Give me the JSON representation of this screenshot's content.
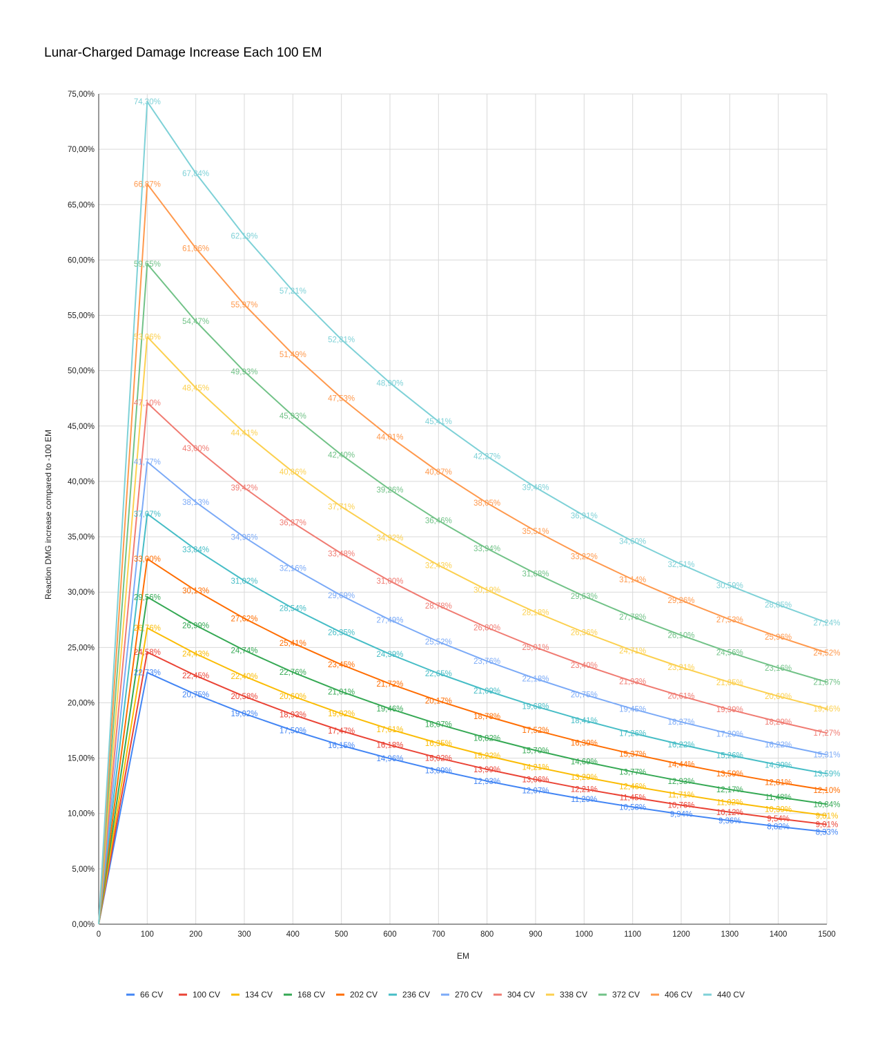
{
  "chart_data": {
    "type": "line",
    "title": "Lunar-Charged Damage Increase Each 100 EM",
    "xlabel": "EM",
    "ylabel": "Reaction DMG increase compared to -100 EM",
    "x": [
      0,
      100,
      200,
      300,
      400,
      500,
      600,
      700,
      800,
      900,
      1000,
      1100,
      1200,
      1300,
      1400,
      1500
    ],
    "xticks": [
      "0",
      "100",
      "200",
      "300",
      "400",
      "500",
      "600",
      "700",
      "800",
      "900",
      "1000",
      "1100",
      "1200",
      "1300",
      "1400",
      "1500"
    ],
    "xlim": [
      0,
      1500
    ],
    "ylim": [
      0,
      75
    ],
    "yticks": [
      "0,00%",
      "5,00%",
      "10,00%",
      "15,00%",
      "20,00%",
      "25,00%",
      "30,00%",
      "35,00%",
      "40,00%",
      "45,00%",
      "50,00%",
      "55,00%",
      "60,00%",
      "65,00%",
      "70,00%",
      "75,00%"
    ],
    "grid": true,
    "legend_position": "bottom",
    "series": [
      {
        "name": "66 CV",
        "color": "#4285f4",
        "values": [
          0,
          22.73,
          20.75,
          19.02,
          17.5,
          16.15,
          14.96,
          13.89,
          12.93,
          12.07,
          11.29,
          10.58,
          9.94,
          9.36,
          8.82,
          8.33
        ],
        "labels": [
          "",
          "22,73%",
          "20,75%",
          "19,02%",
          "17,50%",
          "16,15%",
          "14,96%",
          "13,89%",
          "12,93%",
          "12,07%",
          "11,29%",
          "10,58%",
          "9,94%",
          "9,36%",
          "8,82%",
          "8,33%"
        ]
      },
      {
        "name": "100 CV",
        "color": "#ea4335",
        "values": [
          0,
          24.58,
          22.45,
          20.58,
          18.93,
          17.47,
          16.18,
          15.02,
          13.99,
          13.06,
          12.21,
          11.45,
          10.76,
          10.12,
          9.54,
          9.01
        ],
        "labels": [
          "",
          "24,58%",
          "22,45%",
          "20,58%",
          "18,93%",
          "17,47%",
          "16,18%",
          "15,02%",
          "13,99%",
          "13,06%",
          "12,21%",
          "11,45%",
          "10,76%",
          "10,12%",
          "9,54%",
          "9,01%"
        ]
      },
      {
        "name": "134 CV",
        "color": "#fbbc04",
        "values": [
          0,
          26.76,
          24.43,
          22.4,
          20.6,
          19.02,
          17.61,
          16.35,
          15.22,
          14.21,
          13.29,
          12.46,
          11.71,
          11.02,
          10.39,
          9.81
        ],
        "labels": [
          "",
          "26,76%",
          "24,43%",
          "22,40%",
          "20,60%",
          "19,02%",
          "17,61%",
          "16,35%",
          "15,22%",
          "14,21%",
          "13,29%",
          "12,46%",
          "11,71%",
          "11,02%",
          "10,39%",
          "9,81%"
        ]
      },
      {
        "name": "168 CV",
        "color": "#34a853",
        "values": [
          0,
          29.56,
          26.99,
          24.74,
          22.76,
          21.01,
          19.46,
          18.07,
          16.82,
          15.7,
          14.69,
          13.77,
          12.93,
          12.17,
          11.48,
          10.84
        ],
        "labels": [
          "",
          "29,56%",
          "26,99%",
          "24,74%",
          "22,76%",
          "21,01%",
          "19,46%",
          "18,07%",
          "16,82%",
          "15,70%",
          "14,69%",
          "13,77%",
          "12,93%",
          "12,17%",
          "11,48%",
          "10,84%"
        ]
      },
      {
        "name": "202 CV",
        "color": "#ff6d01",
        "values": [
          0,
          33.0,
          30.13,
          27.62,
          25.41,
          23.45,
          21.72,
          20.17,
          18.78,
          17.52,
          16.39,
          15.37,
          14.44,
          13.59,
          12.81,
          12.1
        ],
        "labels": [
          "",
          "33,00%",
          "30,13%",
          "27,62%",
          "25,41%",
          "23,45%",
          "21,72%",
          "20,17%",
          "18,78%",
          "17,52%",
          "16,39%",
          "15,37%",
          "14,44%",
          "13,59%",
          "12,81%",
          "12,10%"
        ]
      },
      {
        "name": "236 CV",
        "color": "#46bdc6",
        "values": [
          0,
          37.07,
          33.84,
          31.02,
          28.54,
          26.35,
          24.39,
          22.65,
          21.09,
          19.68,
          18.41,
          17.26,
          16.22,
          15.26,
          14.39,
          13.59
        ],
        "labels": [
          "",
          "37,07%",
          "33,84%",
          "31,02%",
          "28,54%",
          "26,35%",
          "24,39%",
          "22,65%",
          "21,09%",
          "19,68%",
          "18,41%",
          "17,26%",
          "16,22%",
          "15,26%",
          "14,39%",
          "13,59%"
        ]
      },
      {
        "name": "270 CV",
        "color": "#7baaf7",
        "values": [
          0,
          41.77,
          38.13,
          34.96,
          32.16,
          29.69,
          27.49,
          25.52,
          23.76,
          22.18,
          20.75,
          19.45,
          18.27,
          17.2,
          16.22,
          15.31
        ],
        "labels": [
          "",
          "41,77%",
          "38,13%",
          "34,96%",
          "32,16%",
          "29,69%",
          "27,49%",
          "25,52%",
          "23,76%",
          "22,18%",
          "20,75%",
          "19,45%",
          "18,27%",
          "17,20%",
          "16,22%",
          "15,31%"
        ]
      },
      {
        "name": "304 CV",
        "color": "#f07b72",
        "values": [
          0,
          47.1,
          43.0,
          39.42,
          36.27,
          33.48,
          31.0,
          28.78,
          26.8,
          25.01,
          23.4,
          21.93,
          20.61,
          19.39,
          18.29,
          17.27
        ],
        "labels": [
          "",
          "47,10%",
          "43,00%",
          "39,42%",
          "36,27%",
          "33,48%",
          "31,00%",
          "28,78%",
          "26,80%",
          "25,01%",
          "23,40%",
          "21,93%",
          "20,61%",
          "19,39%",
          "18,29%",
          "17,27%"
        ]
      },
      {
        "name": "338 CV",
        "color": "#fcd04f",
        "values": [
          0,
          53.06,
          48.45,
          44.41,
          40.86,
          37.71,
          34.92,
          32.43,
          30.19,
          28.18,
          26.36,
          24.71,
          23.21,
          21.85,
          20.6,
          19.46
        ],
        "labels": [
          "",
          "53,06%",
          "48,45%",
          "44,41%",
          "40,86%",
          "37,71%",
          "34,92%",
          "32,43%",
          "30,19%",
          "28,18%",
          "26,36%",
          "24,71%",
          "23,21%",
          "21,85%",
          "20,60%",
          "19,46%"
        ]
      },
      {
        "name": "372 CV",
        "color": "#71c287",
        "values": [
          0,
          59.65,
          54.47,
          49.93,
          45.93,
          42.4,
          39.26,
          36.46,
          33.94,
          31.68,
          29.63,
          27.78,
          26.1,
          24.56,
          23.16,
          21.87
        ],
        "labels": [
          "",
          "59,65%",
          "54,47%",
          "49,93%",
          "45,93%",
          "42,40%",
          "39,26%",
          "36,46%",
          "33,94%",
          "31,68%",
          "29,63%",
          "27,78%",
          "26,10%",
          "24,56%",
          "23,16%",
          "21,87%"
        ]
      },
      {
        "name": "406 CV",
        "color": "#ff994d",
        "values": [
          0,
          66.87,
          61.06,
          55.97,
          51.49,
          47.53,
          44.01,
          40.87,
          38.05,
          35.51,
          33.22,
          31.14,
          29.26,
          27.53,
          25.96,
          24.52
        ],
        "labels": [
          "",
          "66,87%",
          "61,06%",
          "55,97%",
          "51,49%",
          "47,53%",
          "44,01%",
          "40,87%",
          "38,05%",
          "35,51%",
          "33,22%",
          "31,14%",
          "29,26%",
          "27,53%",
          "25,96%",
          "24,52%"
        ]
      },
      {
        "name": "440 CV",
        "color": "#7ed1d7",
        "values": [
          0,
          74.3,
          67.84,
          62.19,
          57.21,
          52.81,
          48.9,
          45.41,
          42.27,
          39.46,
          36.91,
          34.6,
          32.51,
          30.59,
          28.85,
          27.24
        ],
        "labels": [
          "",
          "74,30%",
          "67,84%",
          "62,19%",
          "57,21%",
          "52,81%",
          "48,90%",
          "45,41%",
          "42,27%",
          "39,46%",
          "36,91%",
          "34,60%",
          "32,51%",
          "30,59%",
          "28,85%",
          "27,24%"
        ]
      }
    ]
  }
}
